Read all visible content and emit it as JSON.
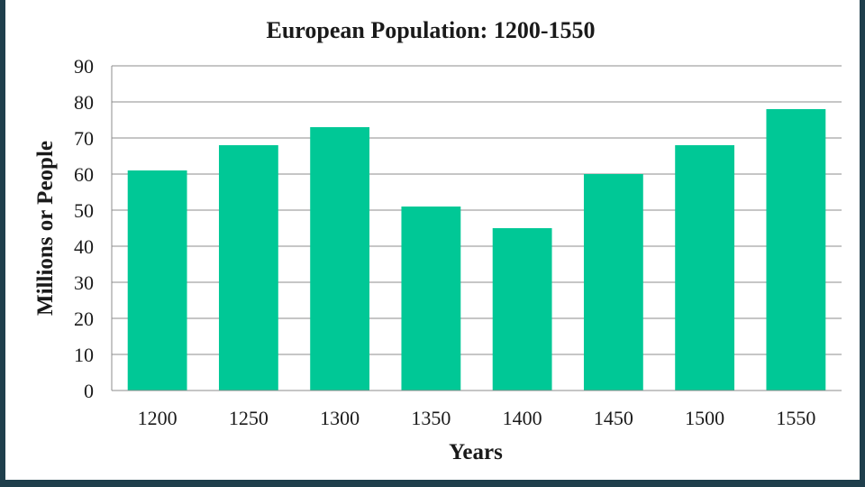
{
  "chart_data": {
    "type": "bar",
    "title": "European Population: 1200-1550",
    "xlabel": "Years",
    "ylabel": "Millions or People",
    "categories": [
      "1200",
      "1250",
      "1300",
      "1350",
      "1400",
      "1450",
      "1500",
      "1550"
    ],
    "values": [
      61,
      68,
      73,
      51,
      45,
      60,
      68,
      78
    ],
    "ylim": [
      0,
      90
    ],
    "yticks": [
      0,
      10,
      20,
      30,
      40,
      50,
      60,
      70,
      80,
      90
    ],
    "grid": true,
    "legend": "none",
    "bar_color": "#00c896"
  }
}
